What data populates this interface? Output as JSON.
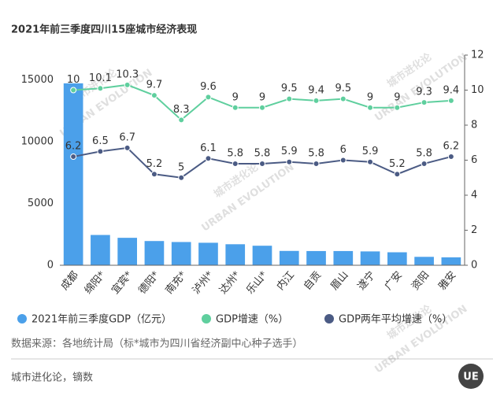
{
  "chart_data": {
    "type": "bar",
    "title": "2021年前三季度四川15座城市经济表现",
    "categories": [
      "成都",
      "绵阳*",
      "宜宾*",
      "德阳*",
      "南充*",
      "泸州*",
      "达州*",
      "乐山*",
      "内江",
      "自贡",
      "眉山",
      "遂宁",
      "广安",
      "资阳",
      "雅安"
    ],
    "series": [
      {
        "name": "2021年前三季度GDP（亿元）",
        "type": "bar",
        "color": "#4ba0ea",
        "values": [
          14717,
          2450,
          2220,
          1960,
          1880,
          1820,
          1700,
          1580,
          1160,
          1150,
          1150,
          1120,
          1050,
          680,
          640
        ]
      },
      {
        "name": "GDP增速（%）",
        "type": "line",
        "axis": "y2",
        "color": "#5fcf9e",
        "values": [
          10,
          10.1,
          10.3,
          9.7,
          8.3,
          9.6,
          9,
          9,
          9.5,
          9.4,
          9.5,
          9,
          9,
          9.3,
          9.4
        ]
      },
      {
        "name": "GDP两年平均增速（%）",
        "type": "line",
        "axis": "y2",
        "color": "#4b5b84",
        "values": [
          6.2,
          6.5,
          6.7,
          5.2,
          5,
          6.1,
          5.8,
          5.8,
          5.9,
          5.8,
          6,
          5.9,
          5.2,
          5.8,
          6.2
        ]
      }
    ],
    "ylim": [
      0,
      17000
    ],
    "yticks": [
      0,
      5000,
      10000,
      15000
    ],
    "y2lim": [
      0,
      12
    ],
    "y2ticks": [
      0,
      2,
      4,
      6,
      8,
      10,
      12
    ],
    "grid": false,
    "source": "数据来源：各地统计局（标*城市为四川省经济副中心种子选手）",
    "footer": "城市进化论，镝数",
    "logo": "UE",
    "watermark": "城市进化论",
    "watermark_sub": "URBAN EVOLUTION"
  }
}
